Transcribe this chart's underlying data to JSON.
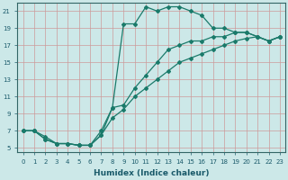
{
  "title": "",
  "xlabel": "Humidex (Indice chaleur)",
  "background_color": "#cce8e8",
  "grid_color": "#aacccc",
  "line_color": "#1a7a6a",
  "xlim": [
    -0.5,
    23.5
  ],
  "ylim": [
    4.5,
    22.0
  ],
  "xticks": [
    0,
    1,
    2,
    3,
    4,
    5,
    6,
    7,
    8,
    9,
    10,
    11,
    12,
    13,
    14,
    15,
    16,
    17,
    18,
    19,
    20,
    21,
    22,
    23
  ],
  "yticks": [
    5,
    7,
    9,
    11,
    13,
    15,
    17,
    19,
    21
  ],
  "peaked_x": [
    0,
    1,
    2,
    3,
    4,
    5,
    6,
    7,
    8,
    9,
    10,
    11,
    12,
    13,
    14,
    15,
    16,
    17,
    18,
    19,
    20,
    21,
    22,
    23
  ],
  "peaked_y": [
    7.0,
    7.0,
    6.0,
    5.5,
    5.5,
    5.3,
    5.3,
    6.5,
    9.7,
    19.5,
    19.5,
    21.5,
    21.0,
    21.5,
    21.5,
    21.0,
    20.5,
    19.0,
    19.0,
    18.5,
    18.5,
    18.0,
    17.5,
    18.0
  ],
  "upper_x": [
    0,
    1,
    2,
    3,
    4,
    5,
    6,
    7,
    8,
    9,
    10,
    11,
    12,
    13,
    14,
    15,
    16,
    17,
    18,
    19,
    20,
    21,
    22,
    23
  ],
  "upper_y": [
    7.0,
    7.0,
    6.3,
    5.5,
    5.5,
    5.3,
    5.3,
    7.0,
    9.7,
    10.0,
    12.0,
    13.5,
    15.0,
    16.5,
    17.0,
    17.5,
    17.5,
    18.0,
    18.0,
    18.5,
    18.5,
    18.0,
    17.5,
    18.0
  ],
  "lower_x": [
    0,
    1,
    2,
    3,
    4,
    5,
    6,
    7,
    8,
    9,
    10,
    11,
    12,
    13,
    14,
    15,
    16,
    17,
    18,
    19,
    20,
    21,
    22,
    23
  ],
  "lower_y": [
    7.0,
    7.0,
    6.0,
    5.5,
    5.5,
    5.3,
    5.3,
    6.5,
    8.5,
    9.5,
    11.0,
    12.0,
    13.0,
    14.0,
    15.0,
    15.5,
    16.0,
    16.5,
    17.0,
    17.5,
    17.8,
    18.0,
    17.5,
    18.0
  ],
  "marker": "D",
  "markersize": 2.0,
  "linewidth": 0.9,
  "xlabel_fontsize": 6.5,
  "tick_fontsize": 5.0
}
